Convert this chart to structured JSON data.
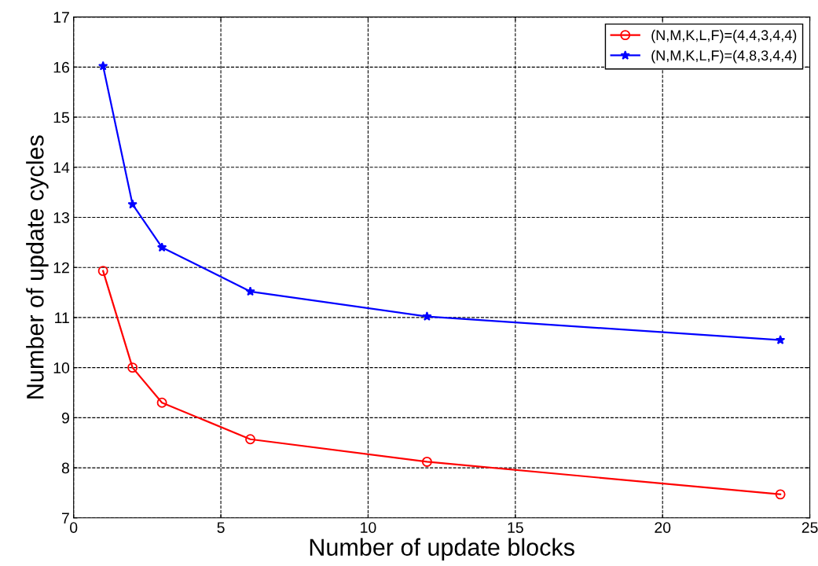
{
  "chart_data": {
    "type": "line",
    "xlabel": "Number of update blocks",
    "ylabel": "Number of update cycles",
    "x": [
      1,
      2,
      3,
      6,
      12,
      24
    ],
    "series": [
      {
        "name": "(N,M,K,L,F)=(4,4,3,4,4)",
        "color": "#ff0000",
        "marker": "circle",
        "values": [
          11.93,
          10.0,
          9.3,
          8.57,
          8.12,
          7.47
        ]
      },
      {
        "name": "(N,M,K,L,F)=(4,8,3,4,4)",
        "color": "#0000ff",
        "marker": "star",
        "values": [
          16.02,
          13.26,
          12.4,
          11.52,
          11.02,
          10.55
        ]
      }
    ],
    "xlim": [
      0,
      25
    ],
    "xticks": [
      0,
      5,
      10,
      15,
      20,
      25
    ],
    "ylim": [
      7,
      17
    ],
    "yticks": [
      7,
      8,
      9,
      10,
      11,
      12,
      13,
      14,
      15,
      16,
      17
    ],
    "grid": true,
    "legend": "top right",
    "line_style": "solid"
  }
}
